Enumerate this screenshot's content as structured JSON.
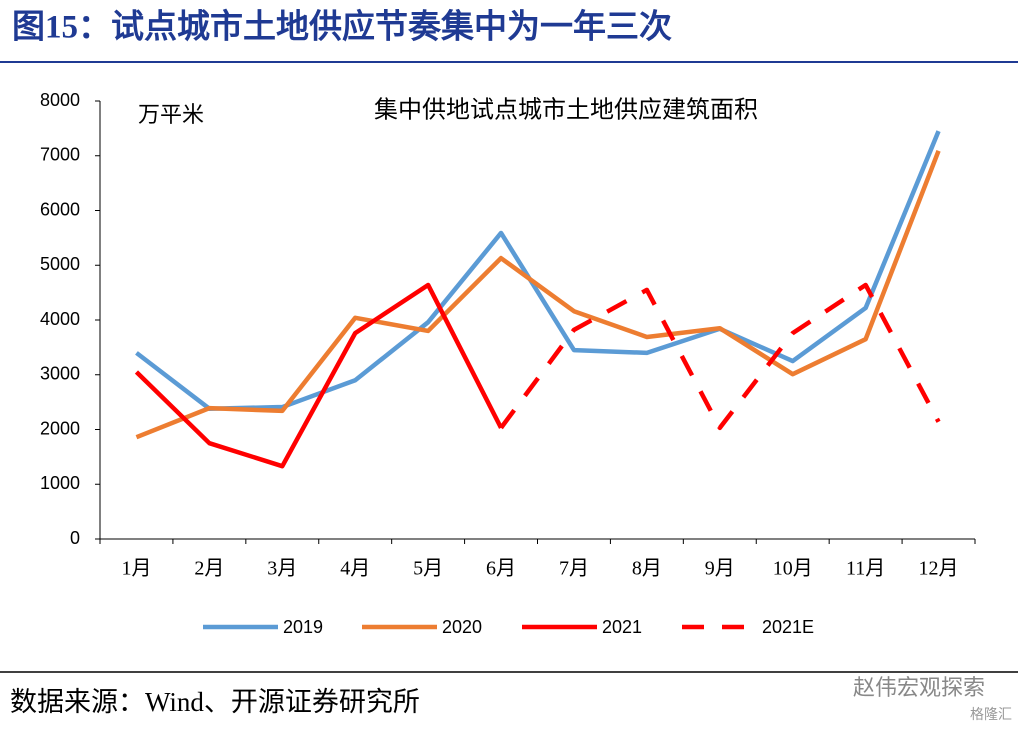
{
  "header": {
    "title": "图15：试点城市土地供应节奏集中为一年三次"
  },
  "chart_data": {
    "type": "line",
    "title": "集中供地试点城市土地供应建筑面积",
    "y_label": "万平米",
    "categories": [
      "1月",
      "2月",
      "3月",
      "4月",
      "5月",
      "6月",
      "7月",
      "8月",
      "9月",
      "10月",
      "11月",
      "12月"
    ],
    "series": [
      {
        "name": "2019",
        "color": "#5b9bd5",
        "dashed": false,
        "values": [
          3400,
          2380,
          2410,
          2900,
          3960,
          5590,
          3450,
          3400,
          3840,
          3250,
          4220,
          7450
        ]
      },
      {
        "name": "2020",
        "color": "#ed7d31",
        "dashed": false,
        "values": [
          1860,
          2390,
          2340,
          4040,
          3800,
          5130,
          4160,
          3690,
          3850,
          3010,
          3650,
          7090
        ]
      },
      {
        "name": "2021",
        "color": "#ff0000",
        "dashed": false,
        "values": [
          3050,
          1750,
          1330,
          3760,
          4640,
          2030,
          null,
          null,
          null,
          null,
          null,
          null
        ]
      },
      {
        "name": "2021E",
        "color": "#ff0000",
        "dashed": true,
        "values": [
          null,
          null,
          null,
          null,
          null,
          2030,
          3820,
          4550,
          2030,
          3760,
          4640,
          2140
        ]
      }
    ],
    "ylim": [
      0,
      8000
    ],
    "yticks": [
      0,
      1000,
      2000,
      3000,
      4000,
      5000,
      6000,
      7000,
      8000
    ],
    "grid": false,
    "legend": "bottom"
  },
  "footer": {
    "source": "数据来源：Wind、开源证券研究所",
    "watermark": "赵伟宏观探索",
    "watermark2": "格隆汇"
  }
}
